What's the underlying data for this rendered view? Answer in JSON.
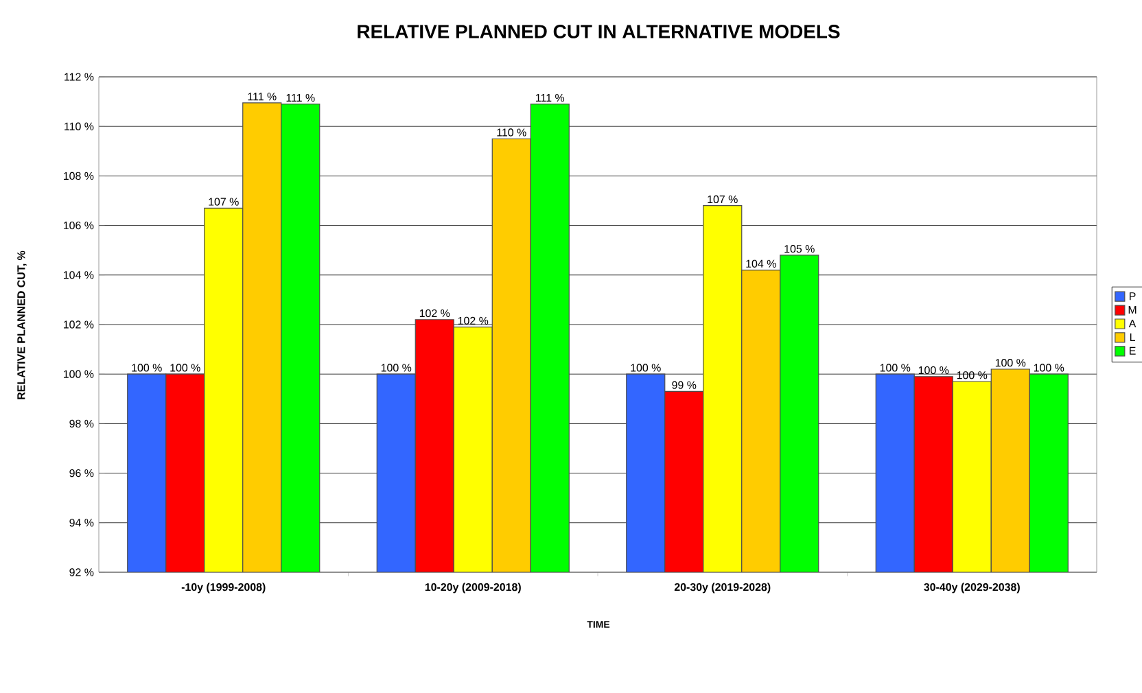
{
  "chart_data": {
    "type": "bar",
    "title": "RELATIVE PLANNED CUT IN ALTERNATIVE MODELS",
    "xlabel": "TIME",
    "ylabel": "RELATIVE PLANNED CUT, %",
    "categories": [
      "-10y (1999-2008)",
      "10-20y (2009-2018)",
      "20-30y (2019-2028)",
      "30-40y (2029-2038)"
    ],
    "series": [
      {
        "name": "P",
        "color": "#3366ff",
        "values": [
          100,
          100,
          100,
          100
        ],
        "value_labels": [
          "100 %",
          "100 %",
          "100 %",
          "100 %"
        ]
      },
      {
        "name": "M",
        "color": "#ff0000",
        "values": [
          100,
          102.2,
          99.3,
          99.9
        ],
        "value_labels": [
          "100 %",
          "102 %",
          "99 %",
          "100 %"
        ]
      },
      {
        "name": "A",
        "color": "#ffff00",
        "values": [
          106.7,
          101.9,
          106.8,
          99.7
        ],
        "value_labels": [
          "107 %",
          "102 %",
          "107 %",
          "100 %"
        ]
      },
      {
        "name": "L",
        "color": "#ffcc00",
        "values": [
          110.95,
          109.5,
          104.2,
          100.2
        ],
        "value_labels": [
          "111 %",
          "110 %",
          "104 %",
          "100 %"
        ]
      },
      {
        "name": "E",
        "color": "#00ff00",
        "values": [
          110.9,
          110.9,
          104.8,
          100.0
        ],
        "value_labels": [
          "111 %",
          "111 %",
          "105 %",
          "100 %"
        ]
      }
    ],
    "ylim": [
      92,
      112
    ],
    "yticks": [
      {
        "value": 92,
        "label": "92 %"
      },
      {
        "value": 94,
        "label": "94 %"
      },
      {
        "value": 96,
        "label": "96 %"
      },
      {
        "value": 98,
        "label": "98 %"
      },
      {
        "value": 100,
        "label": "100 %"
      },
      {
        "value": 102,
        "label": "102 %"
      },
      {
        "value": 104,
        "label": "104 %"
      },
      {
        "value": 106,
        "label": "106 %"
      },
      {
        "value": 108,
        "label": "108 %"
      },
      {
        "value": 110,
        "label": "110 %"
      },
      {
        "value": 112,
        "label": "112 %"
      }
    ],
    "grid": "y",
    "legend": "right"
  }
}
